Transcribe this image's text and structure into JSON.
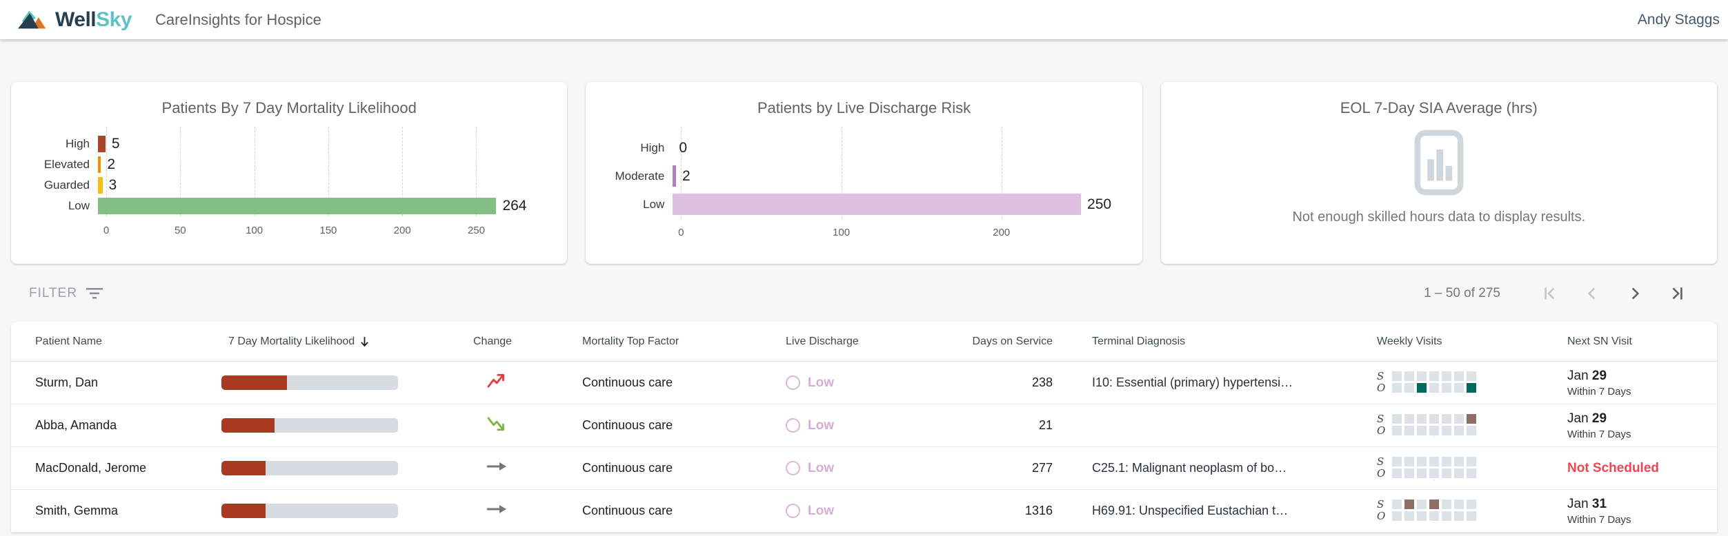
{
  "header": {
    "brand_well": "Well",
    "brand_sky": "Sky",
    "app_title": "CareInsights for Hospice",
    "user_name": "Andy Staggs"
  },
  "colors": {
    "brand_navy": "#24404f",
    "brand_teal": "#5ec1c6",
    "mortality_bar_fill": "#a83a22",
    "bar_track": "#d6dce2",
    "trend_up_red": "#e53935",
    "trend_down_green": "#7cb342",
    "trend_flat_gray": "#757575",
    "live_discharge_low": "#d5aed5",
    "visit_teal": "#00695f",
    "visit_brown": "#8d6e63",
    "visit_marker_orange": "#f9a825",
    "not_scheduled_red": "#ef4553"
  },
  "chart_data": [
    {
      "type": "bar",
      "orientation": "horizontal",
      "title": "Patients By 7 Day Mortality Likelihood",
      "categories": [
        "High",
        "Elevated",
        "Guarded",
        "Low"
      ],
      "values": [
        5,
        2,
        3,
        264
      ],
      "bar_colors": [
        "#a8472a",
        "#ef8f00",
        "#f2c011",
        "#82bf82"
      ],
      "xticks": [
        0,
        50,
        100,
        150,
        200,
        250
      ],
      "xlim": [
        0,
        290
      ],
      "grid": "dashed-vertical",
      "legend": "none"
    },
    {
      "type": "bar",
      "orientation": "horizontal",
      "title": "Patients by Live Discharge Risk",
      "categories": [
        "High",
        "Moderate",
        "Low"
      ],
      "values": [
        0,
        2,
        250
      ],
      "bar_colors": [
        "#b57fc0",
        "#b57fc0",
        "#dec1e0"
      ],
      "xticks": [
        0,
        100,
        200
      ],
      "xlim": [
        0,
        268
      ],
      "grid": "dashed-vertical",
      "legend": "none"
    }
  ],
  "empty_card": {
    "title": "EOL 7-Day SIA Average (hrs)",
    "icon": "bar-chart-placeholder-icon",
    "message": "Not enough skilled hours data to display results."
  },
  "toolbar": {
    "filter_label": "FILTER",
    "pagination": {
      "range_text": "1 – 50 of 275",
      "first_enabled": false,
      "prev_enabled": false,
      "next_enabled": true,
      "last_enabled": true
    }
  },
  "table": {
    "columns": [
      "Patient Name",
      "7 Day Mortality Likelihood",
      "Change",
      "Mortality Top Factor",
      "Live Discharge",
      "Days on Service",
      "Terminal Diagnosis",
      "Weekly Visits",
      "Next SN Visit"
    ],
    "sorted_column": "7 Day Mortality Likelihood",
    "sort_direction": "desc",
    "weekly_row_labels": [
      "S",
      "O"
    ],
    "rows": [
      {
        "patient_name": "Sturm, Dan",
        "mortality_bar_pct": 37,
        "change": "trending-up",
        "mortality_top_factor": "Continuous care",
        "live_discharge": "Low",
        "days_on_service": "238",
        "terminal_diagnosis": "I10: Essential (primary) hypertensi…",
        "weekly_visits": {
          "scheduled": [
            "none",
            "none",
            "none",
            "none",
            "none",
            "none",
            "none"
          ],
          "occurred": [
            "none",
            "none",
            "teal",
            "none",
            "none",
            "none",
            "teal"
          ],
          "marker_index": 3
        },
        "next_sn_visit": {
          "status": "scheduled",
          "month": "Jan",
          "day": "29",
          "subtext": "Within 7 Days"
        }
      },
      {
        "patient_name": "Abba, Amanda",
        "mortality_bar_pct": 30,
        "change": "trending-down",
        "mortality_top_factor": "Continuous care",
        "live_discharge": "Low",
        "days_on_service": "21",
        "terminal_diagnosis": "",
        "weekly_visits": {
          "scheduled": [
            "none",
            "none",
            "none",
            "none",
            "none",
            "none",
            "brown"
          ],
          "occurred": [
            "none",
            "none",
            "none",
            "none",
            "none",
            "none",
            "none"
          ],
          "marker_index": 3
        },
        "next_sn_visit": {
          "status": "scheduled",
          "month": "Jan",
          "day": "29",
          "subtext": "Within 7 Days"
        }
      },
      {
        "patient_name": "MacDonald, Jerome",
        "mortality_bar_pct": 25,
        "change": "flat",
        "mortality_top_factor": "Continuous care",
        "live_discharge": "Low",
        "days_on_service": "277",
        "terminal_diagnosis": "C25.1: Malignant neoplasm of bo…",
        "weekly_visits": {
          "scheduled": [
            "none",
            "none",
            "none",
            "none",
            "none",
            "none",
            "none"
          ],
          "occurred": [
            "none",
            "none",
            "none",
            "none",
            "none",
            "none",
            "none"
          ],
          "marker_index": 3
        },
        "next_sn_visit": {
          "status": "not_scheduled",
          "label": "Not Scheduled"
        }
      },
      {
        "patient_name": "Smith, Gemma",
        "mortality_bar_pct": 25,
        "change": "flat",
        "mortality_top_factor": "Continuous care",
        "live_discharge": "Low",
        "days_on_service": "1316",
        "terminal_diagnosis": "H69.91: Unspecified Eustachian t…",
        "weekly_visits": {
          "scheduled": [
            "none",
            "brown",
            "none",
            "brown",
            "none",
            "none",
            "none"
          ],
          "occurred": [
            "none",
            "none",
            "none",
            "none",
            "none",
            "none",
            "none"
          ],
          "marker_index": 3
        },
        "next_sn_visit": {
          "status": "scheduled",
          "month": "Jan",
          "day": "31",
          "subtext": "Within 7 Days"
        }
      }
    ]
  }
}
